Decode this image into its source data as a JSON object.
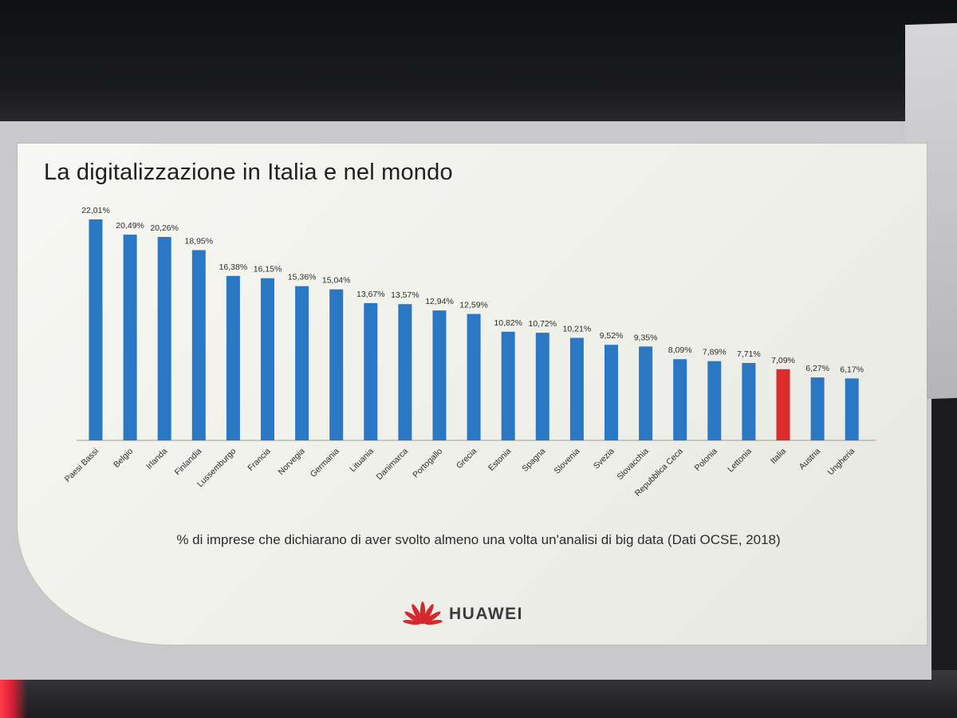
{
  "slide": {
    "title": "La digitalizzazione in Italia e nel mondo",
    "subtitle": "% di imprese che dichiarano di aver svolto almeno una volta un'analisi di big data (Dati OCSE, 2018)",
    "brand": "HUAWEI"
  },
  "chart_data": {
    "type": "bar",
    "categories": [
      "Paesi Bassi",
      "Belgio",
      "Irlanda",
      "Finlandia",
      "Lussemburgo",
      "Francia",
      "Norvegia",
      "Germania",
      "Lituania",
      "Danimarca",
      "Portogallo",
      "Grecia",
      "Estonia",
      "Spagna",
      "Slovenia",
      "Svezia",
      "Slovacchia",
      "Repubblica Ceca",
      "Polonia",
      "Lettonia",
      "Italia",
      "Austria",
      "Ungheria"
    ],
    "values": [
      22.01,
      20.49,
      20.26,
      18.95,
      16.38,
      16.15,
      15.36,
      15.04,
      13.67,
      13.57,
      12.94,
      12.59,
      10.82,
      10.72,
      10.21,
      9.52,
      9.35,
      8.09,
      7.89,
      7.71,
      7.09,
      6.27,
      6.17
    ],
    "labels": [
      "22,01%",
      "20,49%",
      "20,26%",
      "18,95%",
      "16,38%",
      "16,15%",
      "15,36%",
      "15,04%",
      "13,67%",
      "13,57%",
      "12,94%",
      "12,59%",
      "10,82%",
      "10,72%",
      "10,21%",
      "9,52%",
      "9,35%",
      "8,09%",
      "7,89%",
      "7,71%",
      "7,09%",
      "6,27%",
      "6,17%"
    ],
    "highlight": "Italia",
    "colors": {
      "default": "#2a78c4",
      "highlight": "#dd2a2a"
    },
    "ylim": [
      0,
      22.01
    ],
    "grid": false,
    "legend": "none"
  },
  "logo": {
    "icon": "huawei-petals-icon",
    "color": "#d6282e"
  }
}
